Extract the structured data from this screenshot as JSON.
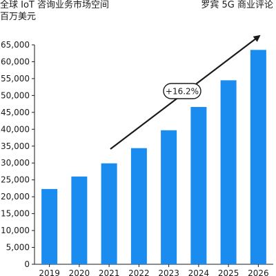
{
  "header": {
    "title": "全球 IoT 咨询业务市场空间",
    "unit": "百万美元",
    "source": "罗宾 5G 商业评论"
  },
  "chart_data": {
    "type": "bar",
    "categories": [
      "2019",
      "2020",
      "2021",
      "2022",
      "2023",
      "2024",
      "2025",
      "2026"
    ],
    "values": [
      22300,
      26000,
      29900,
      34400,
      39700,
      46600,
      54500,
      63500
    ],
    "ylim": [
      0,
      65000
    ],
    "yticks": [
      0,
      5000,
      10000,
      15000,
      20000,
      25000,
      30000,
      35000,
      40000,
      45000,
      50000,
      55000,
      60000,
      65000
    ],
    "ytick_labels": [
      "0",
      "5,000",
      "10,000",
      "15,000",
      "20,000",
      "25,000",
      "30,000",
      "35,000",
      "40,000",
      "45,000",
      "50,000",
      "55,000",
      "60,000",
      "65,000"
    ],
    "annotation": "+16.2%",
    "bar_color": "#1a8cf0",
    "grid": false
  }
}
